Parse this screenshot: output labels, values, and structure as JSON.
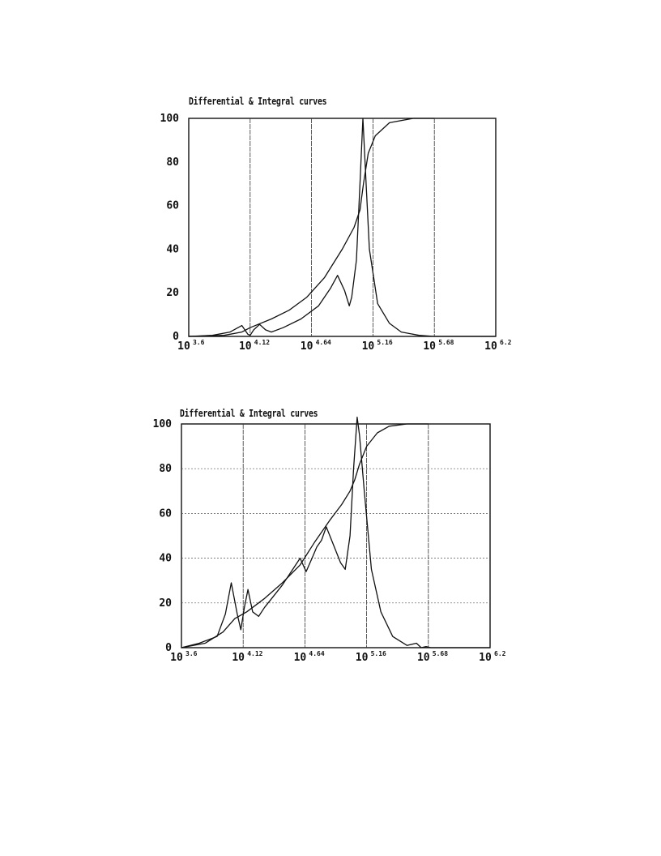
{
  "chart_data": [
    {
      "type": "line",
      "title": "Differential & Integral curves",
      "xlabel": "",
      "ylabel": "",
      "x_scale": "log10",
      "x_tick_labels": [
        {
          "base": "10",
          "exp": "3.6"
        },
        {
          "base": "10",
          "exp": "4.12"
        },
        {
          "base": "10",
          "exp": "4.64"
        },
        {
          "base": "10",
          "exp": "5.16"
        },
        {
          "base": "10",
          "exp": "5.68"
        },
        {
          "base": "10",
          "exp": "6.2"
        }
      ],
      "x_ticks_log10": [
        3.6,
        4.12,
        4.64,
        5.16,
        5.68,
        6.2
      ],
      "y_tick_labels": [
        "0",
        "20",
        "40",
        "60",
        "80",
        "100"
      ],
      "xlim_log10": [
        3.6,
        6.2
      ],
      "ylim": [
        0,
        100
      ],
      "grid": {
        "vertical": true,
        "horizontal": false
      },
      "series": [
        {
          "role": "differential",
          "points": [
            [
              3.6,
              0
            ],
            [
              3.8,
              0.5
            ],
            [
              3.95,
              2
            ],
            [
              4.05,
              5
            ],
            [
              4.1,
              1
            ],
            [
              4.12,
              0.5
            ],
            [
              4.15,
              3
            ],
            [
              4.2,
              5.5
            ],
            [
              4.25,
              3
            ],
            [
              4.3,
              2
            ],
            [
              4.4,
              4
            ],
            [
              4.55,
              8
            ],
            [
              4.7,
              14
            ],
            [
              4.8,
              22
            ],
            [
              4.86,
              28
            ],
            [
              4.92,
              21
            ],
            [
              4.96,
              14
            ],
            [
              4.98,
              18
            ],
            [
              5.02,
              35
            ],
            [
              5.05,
              70
            ],
            [
              5.075,
              100
            ],
            [
              5.1,
              72
            ],
            [
              5.13,
              40
            ],
            [
              5.2,
              15
            ],
            [
              5.3,
              6
            ],
            [
              5.4,
              2
            ],
            [
              5.55,
              0.5
            ],
            [
              5.68,
              0
            ],
            [
              5.9,
              0
            ],
            [
              6.2,
              0
            ]
          ]
        },
        {
          "role": "integral",
          "points": [
            [
              3.6,
              0
            ],
            [
              3.9,
              0.5
            ],
            [
              4.05,
              2
            ],
            [
              4.12,
              4
            ],
            [
              4.3,
              8
            ],
            [
              4.45,
              12
            ],
            [
              4.6,
              18
            ],
            [
              4.75,
              27
            ],
            [
              4.9,
              40
            ],
            [
              5.0,
              50
            ],
            [
              5.05,
              58
            ],
            [
              5.08,
              70
            ],
            [
              5.12,
              84
            ],
            [
              5.18,
              92
            ],
            [
              5.3,
              98
            ],
            [
              5.5,
              100
            ],
            [
              5.68,
              100
            ]
          ]
        }
      ]
    },
    {
      "type": "line",
      "title": "Differential & Integral curves",
      "xlabel": "",
      "ylabel": "",
      "x_scale": "log10",
      "x_tick_labels": [
        {
          "base": "10",
          "exp": "3.6"
        },
        {
          "base": "10",
          "exp": "4.12"
        },
        {
          "base": "10",
          "exp": "4.64"
        },
        {
          "base": "10",
          "exp": "5.16"
        },
        {
          "base": "10",
          "exp": "5.68"
        },
        {
          "base": "10",
          "exp": "6.2"
        }
      ],
      "x_ticks_log10": [
        3.6,
        4.12,
        4.64,
        5.16,
        5.68,
        6.2
      ],
      "y_tick_labels": [
        "0",
        "20",
        "40",
        "60",
        "80",
        "100"
      ],
      "xlim_log10": [
        3.6,
        6.2
      ],
      "ylim": [
        0,
        100
      ],
      "grid": {
        "vertical": true,
        "horizontal": true
      },
      "series": [
        {
          "role": "differential",
          "points": [
            [
              3.6,
              0
            ],
            [
              3.75,
              2
            ],
            [
              3.9,
              5
            ],
            [
              3.97,
              15
            ],
            [
              4.02,
              29
            ],
            [
              4.07,
              15
            ],
            [
              4.1,
              8
            ],
            [
              4.13,
              18
            ],
            [
              4.16,
              26
            ],
            [
              4.2,
              16
            ],
            [
              4.25,
              14
            ],
            [
              4.3,
              18
            ],
            [
              4.36,
              22
            ],
            [
              4.45,
              28
            ],
            [
              4.55,
              36
            ],
            [
              4.6,
              40
            ],
            [
              4.65,
              34
            ],
            [
              4.7,
              40
            ],
            [
              4.74,
              45
            ],
            [
              4.78,
              48
            ],
            [
              4.82,
              54
            ],
            [
              4.88,
              46
            ],
            [
              4.94,
              38
            ],
            [
              4.98,
              35
            ],
            [
              5.02,
              50
            ],
            [
              5.05,
              80
            ],
            [
              5.08,
              103
            ],
            [
              5.1,
              95
            ],
            [
              5.14,
              70
            ],
            [
              5.2,
              35
            ],
            [
              5.28,
              16
            ],
            [
              5.38,
              5
            ],
            [
              5.5,
              1
            ],
            [
              5.58,
              2
            ],
            [
              5.62,
              0
            ],
            [
              5.66,
              0.5
            ],
            [
              5.7,
              0
            ],
            [
              5.9,
              0
            ],
            [
              6.2,
              0
            ]
          ]
        },
        {
          "role": "integral",
          "points": [
            [
              3.6,
              0
            ],
            [
              3.8,
              2
            ],
            [
              3.95,
              7
            ],
            [
              4.05,
              13
            ],
            [
              4.15,
              16
            ],
            [
              4.3,
              22
            ],
            [
              4.45,
              29
            ],
            [
              4.6,
              37
            ],
            [
              4.72,
              47
            ],
            [
              4.85,
              57
            ],
            [
              4.95,
              64
            ],
            [
              5.02,
              70
            ],
            [
              5.06,
              75
            ],
            [
              5.1,
              82
            ],
            [
              5.16,
              90
            ],
            [
              5.25,
              96
            ],
            [
              5.35,
              99
            ],
            [
              5.5,
              100
            ],
            [
              5.68,
              100
            ]
          ]
        }
      ]
    }
  ]
}
